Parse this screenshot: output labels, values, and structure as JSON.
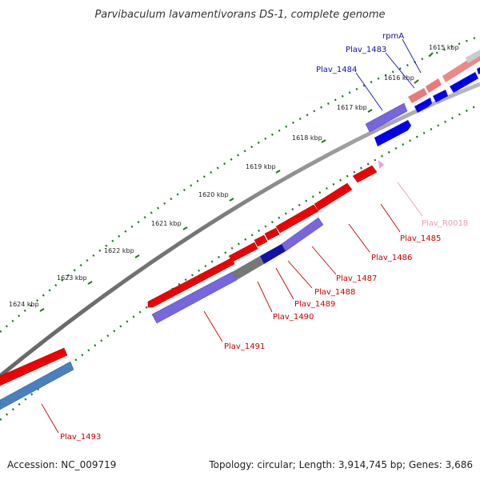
{
  "title": "Parvibaculum lavamentivorans DS-1, complete genome",
  "footer": {
    "accession": "Accession: NC_009719",
    "summary": "Topology: circular; Length: 3,914,745 bp; Genes: 3,686"
  },
  "colors": {
    "forward_gene": "#ee0000",
    "reverse_gene": "#0000ee",
    "forward_label": "#cc0000",
    "reverse_label": "#1111aa",
    "rna_label": "#ee99bb",
    "ticks": "#1a7a1a",
    "backbone": "#777777"
  },
  "ticks": [
    "1615 kbp",
    "1616 kbp",
    "1617 kbp",
    "1618 kbp",
    "1619 kbp",
    "1620 kbp",
    "1621 kbp",
    "1622 kbp",
    "1623 kbp",
    "1624 kbp"
  ],
  "gene_labels": [
    {
      "name": "rpmA",
      "strand": "reverse"
    },
    {
      "name": "Plav_1483",
      "strand": "reverse"
    },
    {
      "name": "Plav_1484",
      "strand": "reverse"
    },
    {
      "name": "Plav_R0018",
      "strand": "rna"
    },
    {
      "name": "Plav_1485",
      "strand": "forward"
    },
    {
      "name": "Plav_1486",
      "strand": "forward"
    },
    {
      "name": "Plav_1487",
      "strand": "forward"
    },
    {
      "name": "Plav_1488",
      "strand": "forward"
    },
    {
      "name": "Plav_1489",
      "strand": "forward"
    },
    {
      "name": "Plav_1490",
      "strand": "forward"
    },
    {
      "name": "Plav_1491",
      "strand": "forward"
    },
    {
      "name": "Plav_1493",
      "strand": "forward"
    }
  ]
}
